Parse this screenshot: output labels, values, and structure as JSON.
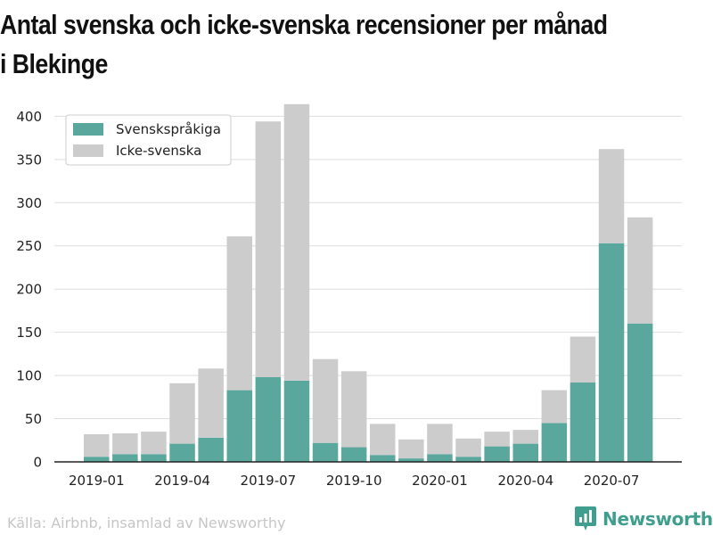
{
  "title": "Antal svenska och icke-svenska recensioner per månad i Blekinge",
  "source": "Källa: Airbnb, insamlad av Newsworthy",
  "brand": {
    "name": "Newsworthy",
    "color": "#3f9e8e"
  },
  "chart_data": {
    "type": "bar",
    "stacked": true,
    "categories": [
      "2019-01",
      "2019-02",
      "2019-03",
      "2019-04",
      "2019-05",
      "2019-06",
      "2019-07",
      "2019-08",
      "2019-09",
      "2019-10",
      "2019-11",
      "2019-12",
      "2020-01",
      "2020-02",
      "2020-03",
      "2020-04",
      "2020-05",
      "2020-06",
      "2020-07",
      "2020-08"
    ],
    "x_tick_labels": [
      "2019-01",
      "2019-04",
      "2019-07",
      "2019-10",
      "2020-01",
      "2020-04",
      "2020-07"
    ],
    "series": [
      {
        "name": "Svenskspråkiga",
        "color": "#5aa89d",
        "values": [
          6,
          9,
          9,
          21,
          28,
          83,
          98,
          94,
          22,
          17,
          8,
          4,
          9,
          6,
          18,
          21,
          45,
          92,
          253,
          160
        ]
      },
      {
        "name": "Icke-svenska",
        "color": "#cccccc",
        "values": [
          26,
          24,
          26,
          70,
          80,
          178,
          296,
          320,
          97,
          88,
          36,
          22,
          35,
          21,
          17,
          16,
          38,
          53,
          109,
          123
        ]
      }
    ],
    "ylim": [
      0,
      420
    ],
    "yticks": [
      0,
      50,
      100,
      150,
      200,
      250,
      300,
      350,
      400
    ],
    "grid": true,
    "legend_position": "top-left"
  }
}
